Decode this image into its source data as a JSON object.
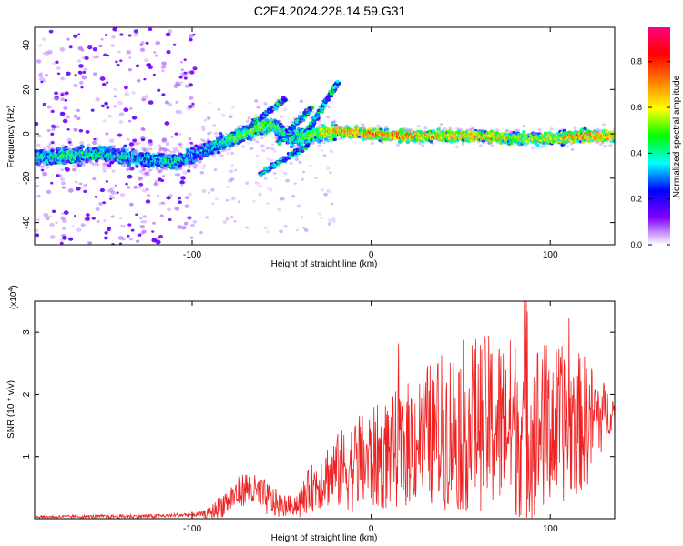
{
  "figure": {
    "title": "C2E4.2024.228.14.59.G31"
  },
  "chart_data": [
    {
      "type": "heatmap",
      "xlabel": "Height of straight line (km)",
      "ylabel": "Frequency (Hz)",
      "xlim": [
        -188,
        136
      ],
      "ylim": [
        -50,
        48
      ],
      "xticks": [
        -100,
        0,
        100
      ],
      "yticks": [
        -40,
        -20,
        0,
        20,
        40
      ],
      "colorbar": {
        "label": "Normalized spectral amplitude",
        "range": [
          0,
          0.95
        ],
        "ticks": [
          0.0,
          0.2,
          0.4,
          0.6,
          0.8
        ],
        "colors": [
          "#ffffff",
          "#7f00ff",
          "#0000ff",
          "#00ffff",
          "#00ff00",
          "#ffff00",
          "#ff7f00",
          "#ff0000",
          "#ff007f"
        ]
      },
      "centerline": [
        {
          "x": -188,
          "f": -11,
          "a": 0.35
        },
        {
          "x": -170,
          "f": -10,
          "a": 0.45
        },
        {
          "x": -150,
          "f": -9,
          "a": 0.4
        },
        {
          "x": -130,
          "f": -11,
          "a": 0.35
        },
        {
          "x": -110,
          "f": -13,
          "a": 0.4
        },
        {
          "x": -95,
          "f": -8,
          "a": 0.3
        },
        {
          "x": -80,
          "f": -3,
          "a": 0.45
        },
        {
          "x": -65,
          "f": 2,
          "a": 0.55
        },
        {
          "x": -55,
          "f": 4,
          "a": 0.5
        },
        {
          "x": -45,
          "f": -2,
          "a": 0.4
        },
        {
          "x": -30,
          "f": 0,
          "a": 0.55
        },
        {
          "x": -20,
          "f": 1,
          "a": 0.7
        },
        {
          "x": 0,
          "f": 0,
          "a": 0.75
        },
        {
          "x": 20,
          "f": -1,
          "a": 0.75
        },
        {
          "x": 40,
          "f": -1,
          "a": 0.65
        },
        {
          "x": 60,
          "f": -1,
          "a": 0.7
        },
        {
          "x": 80,
          "f": -2,
          "a": 0.6
        },
        {
          "x": 100,
          "f": -2,
          "a": 0.6
        },
        {
          "x": 120,
          "f": -1,
          "a": 0.75
        },
        {
          "x": 136,
          "f": -1,
          "a": 0.7
        }
      ],
      "branches": [
        {
          "from": [
            -62,
            -18
          ],
          "to": [
            -35,
            -5
          ]
        },
        {
          "from": [
            -52,
            -4
          ],
          "to": [
            -33,
            12
          ]
        },
        {
          "from": [
            -70,
            2
          ],
          "to": [
            -48,
            16
          ]
        },
        {
          "from": [
            -35,
            2
          ],
          "to": [
            -18,
            24
          ]
        }
      ]
    },
    {
      "type": "line",
      "xlabel": "Height of straight line (km)",
      "ylabel": "SNR (10 * v/v)",
      "scale_label": "(x10",
      "scale_exponent": "4",
      "xlim": [
        -188,
        136
      ],
      "ylim": [
        0,
        3.5
      ],
      "xticks": [
        -100,
        0,
        100
      ],
      "yticks": [
        1,
        2,
        3
      ],
      "series": [
        {
          "color": "#ee2222",
          "baseline": [
            {
              "x": -188,
              "y": 0.03
            },
            {
              "x": -120,
              "y": 0.04
            },
            {
              "x": -90,
              "y": 0.08
            },
            {
              "x": -80,
              "y": 0.3
            },
            {
              "x": -70,
              "y": 0.5
            },
            {
              "x": -60,
              "y": 0.35
            },
            {
              "x": -50,
              "y": 0.2
            },
            {
              "x": -40,
              "y": 0.25
            },
            {
              "x": -35,
              "y": 0.45
            },
            {
              "x": -25,
              "y": 0.7
            },
            {
              "x": -10,
              "y": 0.85
            },
            {
              "x": 10,
              "y": 1.05
            },
            {
              "x": 30,
              "y": 1.35
            },
            {
              "x": 60,
              "y": 1.55
            },
            {
              "x": 90,
              "y": 1.45
            },
            {
              "x": 120,
              "y": 1.55
            },
            {
              "x": 136,
              "y": 1.75
            }
          ],
          "amplitude": [
            {
              "x": -188,
              "y": 0.02
            },
            {
              "x": -95,
              "y": 0.04
            },
            {
              "x": -80,
              "y": 0.25
            },
            {
              "x": -60,
              "y": 0.3
            },
            {
              "x": -45,
              "y": 0.15
            },
            {
              "x": -30,
              "y": 0.45
            },
            {
              "x": -10,
              "y": 0.75
            },
            {
              "x": 20,
              "y": 1.0
            },
            {
              "x": 50,
              "y": 1.4
            },
            {
              "x": 90,
              "y": 1.5
            },
            {
              "x": 120,
              "y": 1.1
            },
            {
              "x": 136,
              "y": 0.2
            }
          ]
        }
      ]
    }
  ]
}
